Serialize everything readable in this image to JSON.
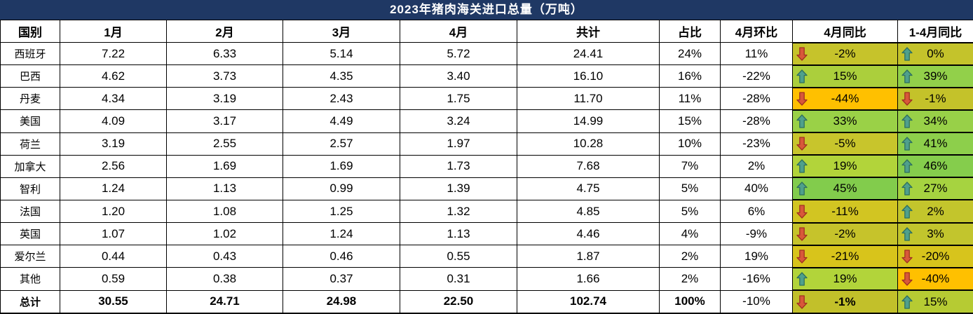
{
  "title": "2023年猪肉海关进口总量（万吨）",
  "colors": {
    "title_bg": "#1F3864",
    "title_text": "#FFFFFF",
    "border": "#000000",
    "orange_low": "#FFC000",
    "up_arrow_fill": "#4FA08C",
    "up_arrow_outline": "#2F6F5F",
    "down_arrow_fill": "#D8583A",
    "down_arrow_outline": "#A03222"
  },
  "table": {
    "headers": [
      "国别",
      "1月",
      "2月",
      "3月",
      "4月",
      "共计",
      "占比",
      "4月环比",
      "4月同比",
      "1-4月同比"
    ],
    "rows": [
      {
        "country": "西班牙",
        "m1": "7.22",
        "m2": "6.33",
        "m3": "5.14",
        "m4": "5.72",
        "total": "24.41",
        "share": "24%",
        "mom": "11%",
        "yoy4": {
          "value": "-2%",
          "dir": "down",
          "bg": "#C6C32B"
        },
        "yoy14": {
          "value": "0%",
          "dir": "up",
          "bg": "#C4C32B"
        }
      },
      {
        "country": "巴西",
        "m1": "4.62",
        "m2": "3.73",
        "m3": "4.35",
        "m4": "3.40",
        "total": "16.10",
        "share": "16%",
        "mom": "-22%",
        "yoy4": {
          "value": "15%",
          "dir": "up",
          "bg": "#ABCF3C"
        },
        "yoy14": {
          "value": "39%",
          "dir": "up",
          "bg": "#92D04A"
        }
      },
      {
        "country": "丹麦",
        "m1": "4.34",
        "m2": "3.19",
        "m3": "2.43",
        "m4": "1.75",
        "total": "11.70",
        "share": "11%",
        "mom": "-28%",
        "yoy4": {
          "value": "-44%",
          "dir": "down",
          "bg": "#FFC000"
        },
        "yoy14": {
          "value": "-1%",
          "dir": "down",
          "bg": "#C4C22A"
        }
      },
      {
        "country": "美国",
        "m1": "4.09",
        "m2": "3.17",
        "m3": "4.49",
        "m4": "3.24",
        "total": "14.99",
        "share": "15%",
        "mom": "-28%",
        "yoy4": {
          "value": "33%",
          "dir": "up",
          "bg": "#9AD147"
        },
        "yoy14": {
          "value": "34%",
          "dir": "up",
          "bg": "#98D048"
        }
      },
      {
        "country": "荷兰",
        "m1": "3.19",
        "m2": "2.55",
        "m3": "2.57",
        "m4": "1.97",
        "total": "10.28",
        "share": "10%",
        "mom": "-23%",
        "yoy4": {
          "value": "-5%",
          "dir": "down",
          "bg": "#C8C52C"
        },
        "yoy14": {
          "value": "41%",
          "dir": "up",
          "bg": "#8DCF4B"
        }
      },
      {
        "country": "加拿大",
        "m1": "2.56",
        "m2": "1.69",
        "m3": "1.69",
        "m4": "1.73",
        "total": "7.68",
        "share": "7%",
        "mom": "2%",
        "yoy4": {
          "value": "19%",
          "dir": "up",
          "bg": "#B2D43A"
        },
        "yoy14": {
          "value": "46%",
          "dir": "up",
          "bg": "#85CD4C"
        }
      },
      {
        "country": "智利",
        "m1": "1.24",
        "m2": "1.13",
        "m3": "0.99",
        "m4": "1.39",
        "total": "4.75",
        "share": "5%",
        "mom": "40%",
        "yoy4": {
          "value": "45%",
          "dir": "up",
          "bg": "#82CC4C"
        },
        "yoy14": {
          "value": "27%",
          "dir": "up",
          "bg": "#A6D340"
        }
      },
      {
        "country": "法国",
        "m1": "1.20",
        "m2": "1.08",
        "m3": "1.25",
        "m4": "1.32",
        "total": "4.85",
        "share": "5%",
        "mom": "6%",
        "yoy4": {
          "value": "-11%",
          "dir": "down",
          "bg": "#D2C522"
        },
        "yoy14": {
          "value": "2%",
          "dir": "up",
          "bg": "#C3C52C"
        }
      },
      {
        "country": "英国",
        "m1": "1.07",
        "m2": "1.02",
        "m3": "1.24",
        "m4": "1.13",
        "total": "4.46",
        "share": "4%",
        "mom": "-9%",
        "yoy4": {
          "value": "-2%",
          "dir": "down",
          "bg": "#C6C32B"
        },
        "yoy14": {
          "value": "3%",
          "dir": "up",
          "bg": "#C2C52D"
        }
      },
      {
        "country": "爱尔兰",
        "m1": "0.44",
        "m2": "0.43",
        "m3": "0.46",
        "m4": "0.55",
        "total": "1.87",
        "share": "2%",
        "mom": "19%",
        "yoy4": {
          "value": "-21%",
          "dir": "down",
          "bg": "#D8C41B"
        },
        "yoy14": {
          "value": "-20%",
          "dir": "down",
          "bg": "#D7C41C"
        }
      },
      {
        "country": "其他",
        "m1": "0.59",
        "m2": "0.38",
        "m3": "0.37",
        "m4": "0.31",
        "total": "1.66",
        "share": "2%",
        "mom": "-16%",
        "yoy4": {
          "value": "19%",
          "dir": "up",
          "bg": "#B2D43A"
        },
        "yoy14": {
          "value": "-40%",
          "dir": "down",
          "bg": "#FFC000"
        }
      }
    ],
    "total_row": {
      "country": "总计",
      "m1": "30.55",
      "m2": "24.71",
      "m3": "24.98",
      "m4": "22.50",
      "total": "102.74",
      "share": "100%",
      "mom": "-10%",
      "yoy4": {
        "value": "-1%",
        "dir": "down",
        "bg": "#C2C02A",
        "bold": true
      },
      "yoy14": {
        "value": "15%",
        "dir": "up",
        "bg": "#B6CB33"
      }
    }
  }
}
